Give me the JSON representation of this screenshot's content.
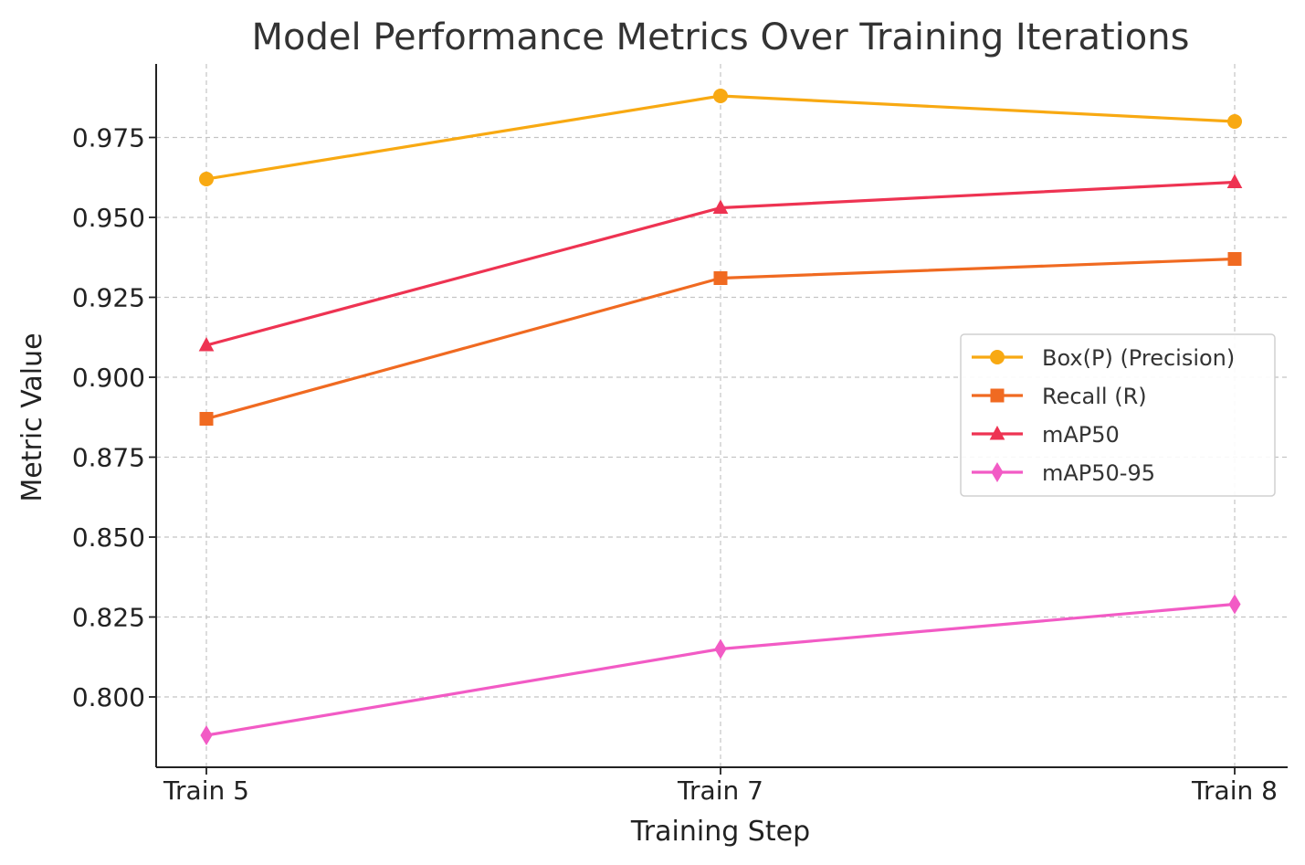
{
  "chart_data": {
    "type": "line",
    "title": "Model Performance Metrics Over Training Iterations",
    "xlabel": "Training Step",
    "ylabel": "Metric Value",
    "categories": [
      "Train 5",
      "Train 7",
      "Train 8"
    ],
    "ylim": [
      0.778,
      0.998
    ],
    "yticks": [
      0.8,
      0.825,
      0.85,
      0.875,
      0.9,
      0.925,
      0.95,
      0.975
    ],
    "ytick_labels": [
      "0.800",
      "0.825",
      "0.850",
      "0.875",
      "0.900",
      "0.925",
      "0.950",
      "0.975"
    ],
    "grid": true,
    "legend_position": "center-right",
    "series": [
      {
        "name": "Box(P) (Precision)",
        "values": [
          0.962,
          0.988,
          0.98
        ],
        "color": "#f8a912",
        "marker": "circle"
      },
      {
        "name": "Recall (R)",
        "values": [
          0.887,
          0.931,
          0.937
        ],
        "color": "#f06a21",
        "marker": "square"
      },
      {
        "name": "mAP50",
        "values": [
          0.91,
          0.953,
          0.961
        ],
        "color": "#ee3352",
        "marker": "triangle"
      },
      {
        "name": "mAP50-95",
        "values": [
          0.788,
          0.815,
          0.829
        ],
        "color": "#f25bc5",
        "marker": "diamond"
      }
    ]
  }
}
